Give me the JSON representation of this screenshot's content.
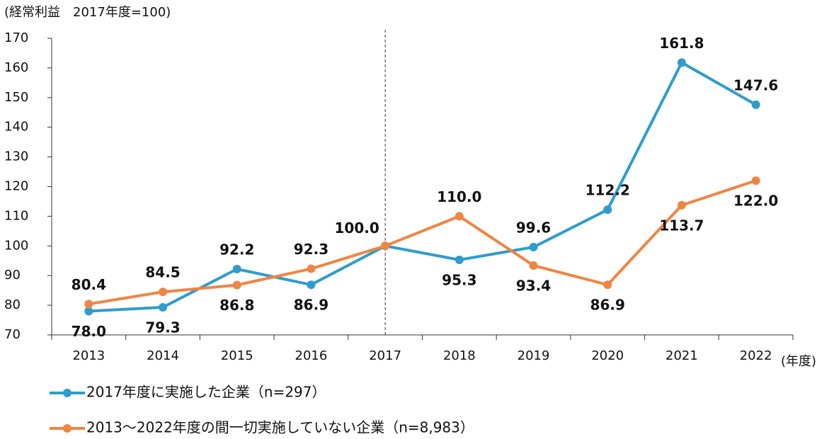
{
  "chart_data": {
    "type": "line",
    "y_label": "(経常利益　2017年度=100)",
    "x_label": "(年度)",
    "categories": [
      "2013",
      "2014",
      "2015",
      "2016",
      "2017",
      "2018",
      "2019",
      "2020",
      "2021",
      "2022"
    ],
    "series": [
      {
        "name": "2017年度に実施した企業（n=297）",
        "color": "#2e9ccc",
        "values": [
          78.0,
          79.3,
          92.2,
          86.9,
          100.0,
          95.3,
          99.6,
          112.2,
          161.8,
          147.6
        ],
        "value_labels": [
          "78.0",
          "79.3",
          "92.2",
          "86.9",
          "100.0",
          "95.3",
          "99.6",
          "112.2",
          "161.8",
          "147.6"
        ]
      },
      {
        "name": "2013～2022年度の間一切実施していない企業（n=8,983）",
        "color": "#f08541",
        "values": [
          80.4,
          84.5,
          86.8,
          92.3,
          100.0,
          110.0,
          93.4,
          86.9,
          113.7,
          122.0
        ],
        "value_labels": [
          "80.4",
          "84.5",
          "86.8",
          "92.3",
          "100.0",
          "110.0",
          "93.4",
          "86.9",
          "113.7",
          "122.0"
        ]
      }
    ],
    "ylim": [
      70,
      170
    ],
    "yticks": [
      70,
      80,
      90,
      100,
      110,
      120,
      130,
      140,
      150,
      160,
      170
    ],
    "vline": "2017"
  }
}
